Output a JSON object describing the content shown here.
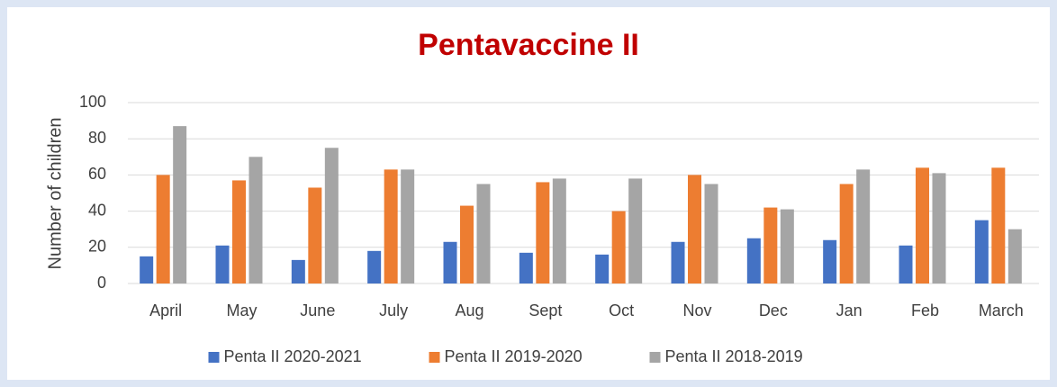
{
  "chart_data": {
    "type": "bar",
    "title": "Pentavaccine II",
    "y_label": "Number of children",
    "categories": [
      "April",
      "May",
      "June",
      "July",
      "Aug",
      "Sept",
      "Oct",
      "Nov",
      "Dec",
      "Jan",
      "Feb",
      "March"
    ],
    "series": [
      {
        "name": "Penta II 2020-2021",
        "color": "#4472c4",
        "values": [
          15,
          21,
          13,
          18,
          23,
          17,
          16,
          23,
          25,
          24,
          21,
          35
        ]
      },
      {
        "name": "Penta II 2019-2020",
        "color": "#ed7d31",
        "values": [
          60,
          57,
          53,
          63,
          43,
          56,
          40,
          60,
          42,
          55,
          64,
          64
        ]
      },
      {
        "name": "Penta II 2018-2019",
        "color": "#a5a5a5",
        "values": [
          87,
          70,
          75,
          63,
          55,
          58,
          58,
          55,
          41,
          63,
          61,
          30
        ]
      }
    ],
    "ylim": [
      0,
      100
    ],
    "yticks": [
      0,
      20,
      40,
      60,
      80,
      100
    ],
    "grid": true,
    "legend": "bottom"
  }
}
